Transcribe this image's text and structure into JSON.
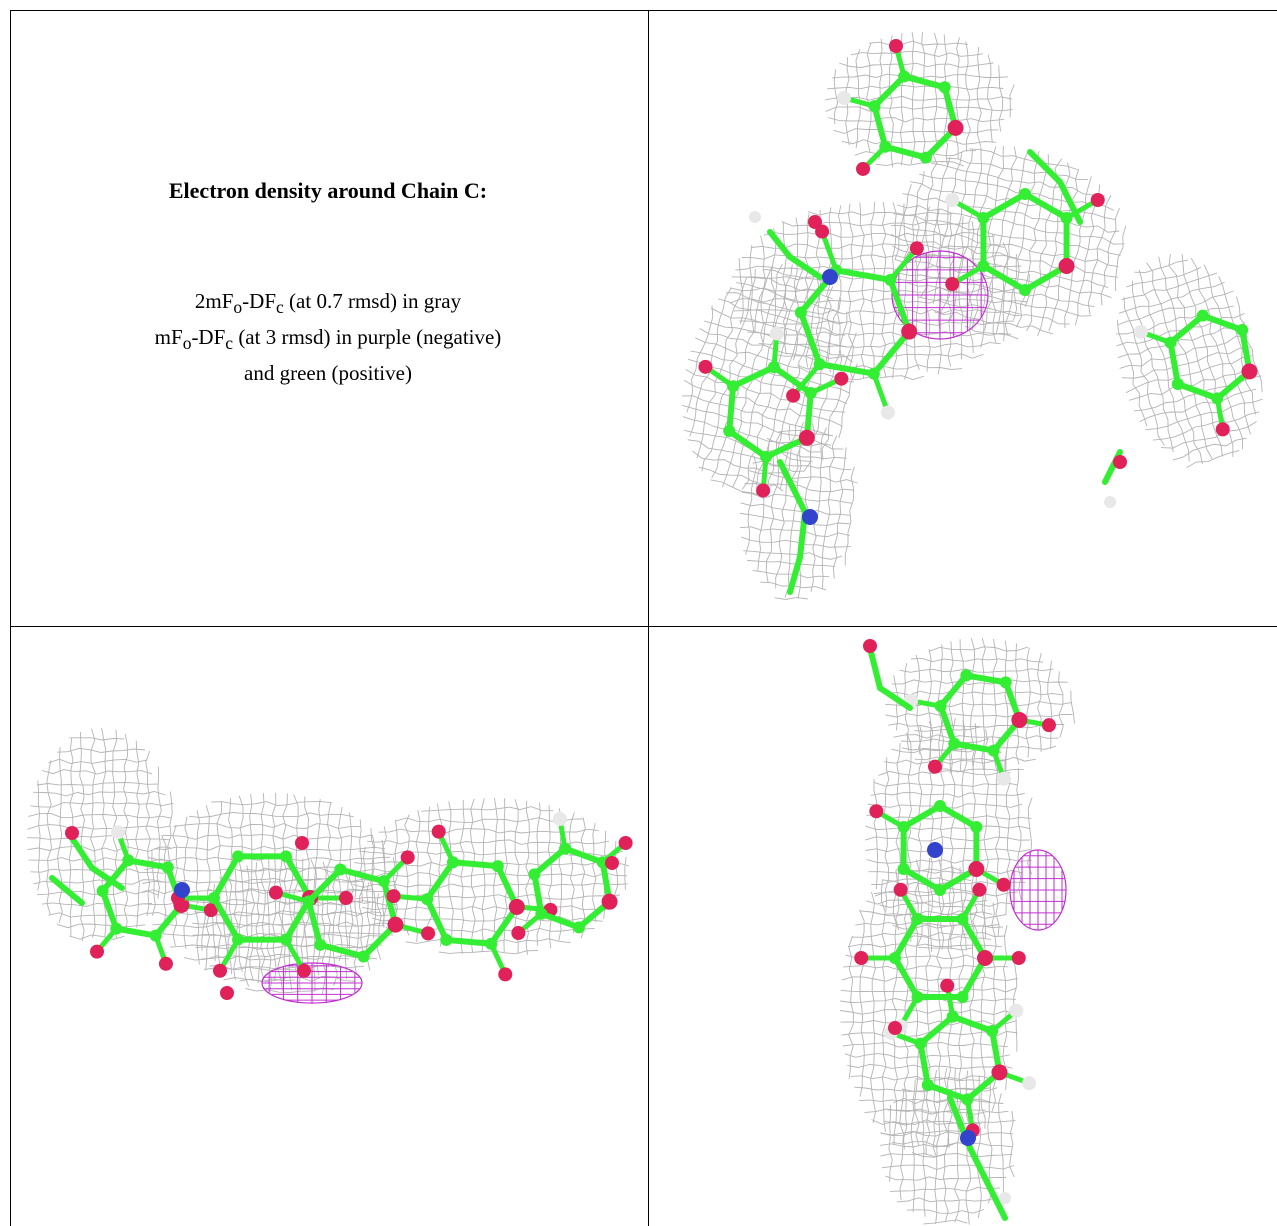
{
  "caption": {
    "title": "Electron density around Chain C:",
    "line1": {
      "a": "2mF",
      "a_sub": "o",
      "b": "-DF",
      "b_sub": "c",
      "rest": " (at 0.7 rmsd) in gray"
    },
    "line2": {
      "a": "mF",
      "a_sub": "o",
      "b": "-DF",
      "b_sub": "c",
      "rest": " (at 3 rmsd) in purple (negative)"
    },
    "line3": "and green (positive)"
  },
  "colors": {
    "mesh": "#b4b4b4",
    "carbon": "#33ee33",
    "oxygen": "#e0215a",
    "nitrogen": "#3344cc",
    "hydrogen": "#e8e8e8",
    "negative_density": "#c030d0",
    "border": "#000000"
  },
  "panels": [
    {
      "id": "top-right",
      "kind": "molecule-render",
      "view": "front"
    },
    {
      "id": "bottom-left",
      "kind": "molecule-render",
      "view": "side"
    },
    {
      "id": "bottom-right",
      "kind": "molecule-render",
      "view": "end-on"
    }
  ]
}
